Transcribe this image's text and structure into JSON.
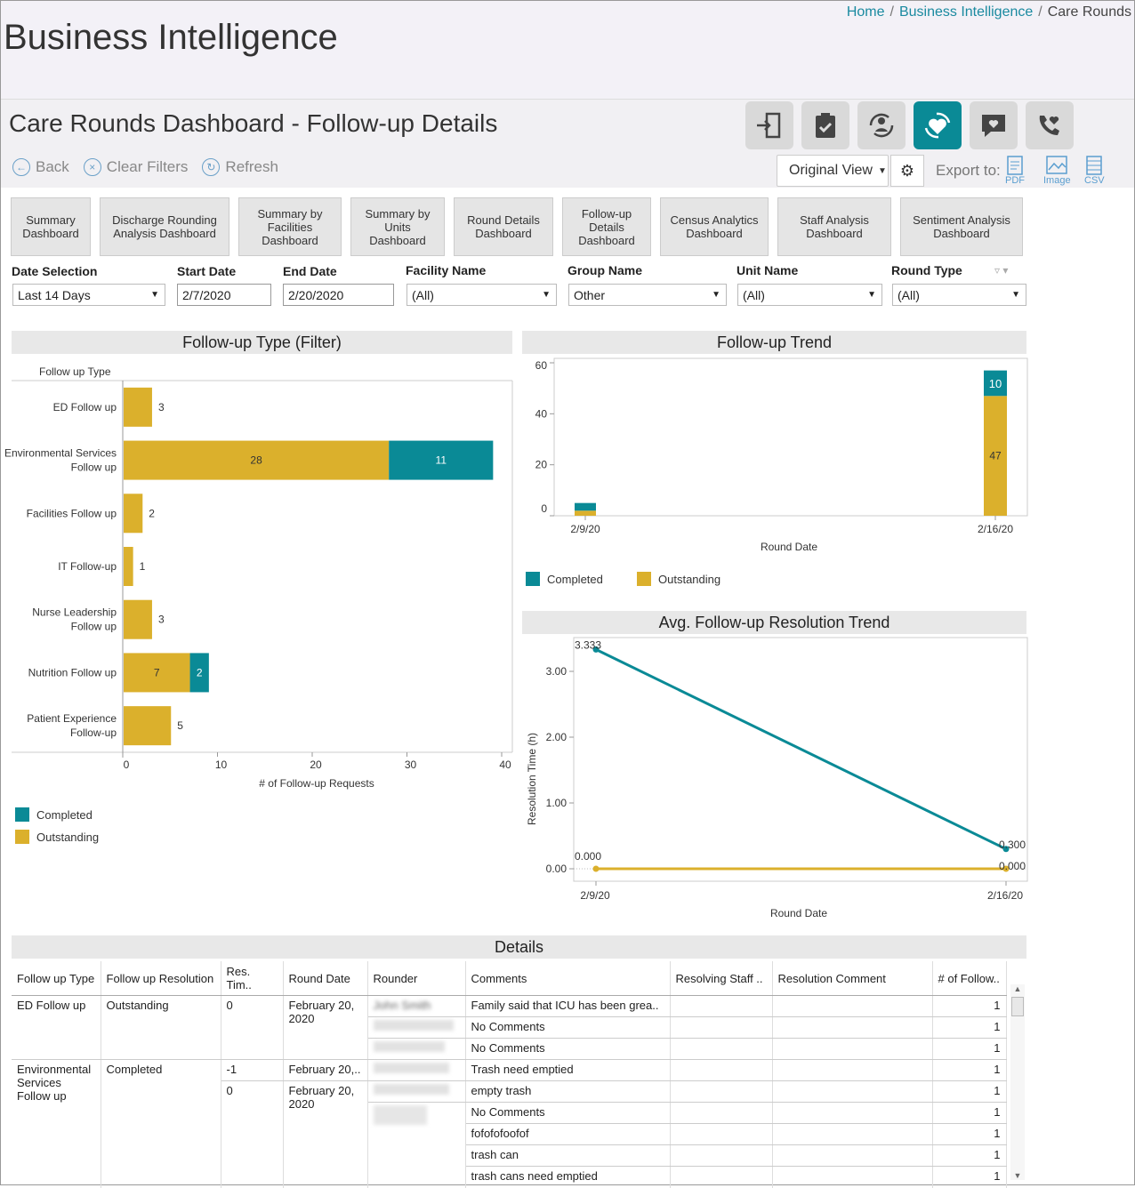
{
  "breadcrumb": {
    "home": "Home",
    "bi": "Business Intelligence",
    "current": "Care Rounds"
  },
  "app_title": "Business Intelligence",
  "page_title": "Care Rounds Dashboard - Follow-up Details",
  "nav_icons": [
    "door-exit-icon",
    "clipboard-check-icon",
    "person-rotate-icon",
    "heart-care-icon",
    "heart-chat-icon",
    "heart-phone-icon"
  ],
  "toolbar": {
    "back": "Back",
    "clear": "Clear Filters",
    "refresh": "Refresh",
    "view": "Original View",
    "export_label": "Export to:",
    "pdf": "PDF",
    "image": "Image",
    "csv": "CSV"
  },
  "dash_tabs": [
    "Summary Dashboard",
    "Discharge Rounding Analysis Dashboard",
    "Summary by Facilities Dashboard",
    "Summary by Units Dashboard",
    "Round Details Dashboard",
    "Follow-up Details Dashboard",
    "Census Analytics Dashboard",
    "Staff Analysis Dashboard",
    "Sentiment Analysis Dashboard"
  ],
  "filters": {
    "date_selection": {
      "label": "Date Selection",
      "value": "Last 14 Days"
    },
    "start_date": {
      "label": "Start Date",
      "value": "2/7/2020"
    },
    "end_date": {
      "label": "End Date",
      "value": "2/20/2020"
    },
    "facility": {
      "label": "Facility Name",
      "value": "(All)"
    },
    "group": {
      "label": "Group Name",
      "value": "Other"
    },
    "unit": {
      "label": "Unit Name",
      "value": "(All)"
    },
    "round_type": {
      "label": "Round Type",
      "value": "(All)"
    }
  },
  "colors": {
    "completed": "#0a8a96",
    "outstanding": "#dbb02c"
  },
  "chart_data": [
    {
      "type": "bar",
      "title": "Follow-up Type (Filter)",
      "ylabel": "Follow up Type",
      "xlabel": "# of Follow-up Requests",
      "categories": [
        "ED Follow up",
        "Environmental Services Follow up",
        "Facilities Follow up",
        "IT Follow-up",
        "Nurse Leadership Follow up",
        "Nutrition Follow up",
        "Patient Experience Follow-up"
      ],
      "series": [
        {
          "name": "Outstanding",
          "values": [
            3,
            28,
            2,
            1,
            3,
            7,
            5
          ]
        },
        {
          "name": "Completed",
          "values": [
            0,
            11,
            0,
            0,
            0,
            2,
            0
          ]
        }
      ],
      "xlim": [
        0,
        40
      ],
      "xticks": [
        0,
        10,
        20,
        30,
        40
      ],
      "legend": "bottom-left"
    },
    {
      "type": "bar",
      "title": "Follow-up Trend",
      "xlabel": "Round Date",
      "categories": [
        "2/9/20",
        "2/16/20"
      ],
      "series": [
        {
          "name": "Outstanding",
          "values": [
            2,
            47
          ]
        },
        {
          "name": "Completed",
          "values": [
            3,
            10
          ]
        }
      ],
      "ylim": [
        0,
        60
      ],
      "yticks": [
        0,
        20,
        40,
        60
      ],
      "legend": "bottom"
    },
    {
      "type": "line",
      "title": "Avg. Follow-up Resolution Trend",
      "xlabel": "Round Date",
      "ylabel": "Resolution Time (h)",
      "x": [
        "2/9/20",
        "2/16/20"
      ],
      "series": [
        {
          "name": "Completed",
          "values": [
            3.333,
            0.3
          ],
          "labels": [
            "3.333",
            "0.300"
          ]
        },
        {
          "name": "Outstanding",
          "values": [
            0.0,
            0.0
          ],
          "labels": [
            "0.000",
            "0.000"
          ]
        }
      ],
      "ylim": [
        0,
        3.5
      ],
      "yticks": [
        "0.00",
        "1.00",
        "2.00",
        "3.00"
      ]
    }
  ],
  "legend": {
    "completed": "Completed",
    "outstanding": "Outstanding"
  },
  "details": {
    "title": "Details",
    "columns": [
      "Follow up Type",
      "Follow up Resolution",
      "Res. Tim..",
      "Round Date",
      "Rounder",
      "Comments",
      "Resolving Staff ..",
      "Resolution Comment",
      "# of Follow.."
    ],
    "group1": {
      "type": "ED Follow up",
      "resolution": "Outstanding",
      "res_time": "0",
      "round_date": "February 20, 2020"
    },
    "group2": {
      "type": "Environmental Services Follow up",
      "resolution": "Completed",
      "res_time_a": "-1",
      "round_date_a": "February 20,..",
      "res_time_b": "0",
      "round_date_b": "February 20, 2020"
    },
    "rounders": [
      "John Smith",
      "",
      "",
      "",
      "",
      "",
      "",
      "",
      "",
      ""
    ],
    "comments": [
      "Family said that ICU has been grea..",
      "No Comments",
      "No Comments",
      "Trash need emptied",
      "empty trash",
      "No Comments",
      "fofofofoofof",
      "trash can",
      "trash cans need emptied"
    ],
    "counts": [
      "1",
      "1",
      "1",
      "1",
      "1",
      "1",
      "1",
      "1",
      "1"
    ]
  }
}
